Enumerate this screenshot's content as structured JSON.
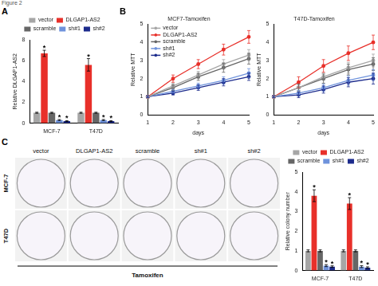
{
  "figure_label": "Figure 2",
  "chart_data": [
    {
      "panel": "A",
      "type": "bar",
      "y_label": "Relative DLGAP1-AS2",
      "categories": [
        "MCF-7",
        "T47D"
      ],
      "series": [
        {
          "name": "vector",
          "color": "#a6a6a6",
          "values": [
            1,
            1
          ],
          "errors": [
            0.05,
            0.05
          ]
        },
        {
          "name": "DLGAP1-AS2",
          "color": "#e8302a",
          "values": [
            6.7,
            5.6
          ],
          "errors": [
            0.3,
            0.6
          ],
          "marks": [
            "*",
            "*"
          ]
        },
        {
          "name": "scramble",
          "color": "#666666",
          "values": [
            1,
            1
          ],
          "errors": [
            0.05,
            0.05
          ]
        },
        {
          "name": "sh#1",
          "color": "#6f93dc",
          "values": [
            0.3,
            0.3
          ],
          "errors": [
            0.05,
            0.05
          ],
          "marks": [
            "*",
            "*"
          ]
        },
        {
          "name": "sh#2",
          "color": "#1c2b8c",
          "values": [
            0.2,
            0.2
          ],
          "errors": [
            0.04,
            0.04
          ],
          "marks": [
            "*",
            "*"
          ]
        }
      ],
      "ylim": [
        0,
        8
      ],
      "yticks": [
        0,
        2,
        4,
        6,
        8
      ],
      "grid": false,
      "legend": "top"
    },
    {
      "panel": "B",
      "type": "line",
      "title": "MCF7-Tamoxifen",
      "x_label": "days",
      "y_label": "Relative MTT",
      "x": [
        1,
        2,
        3,
        4,
        5
      ],
      "series": [
        {
          "name": "vector",
          "color": "#a6a6a6",
          "values": [
            1,
            1.6,
            2.2,
            2.8,
            3.3
          ],
          "errors": [
            0.05,
            0.15,
            0.2,
            0.25,
            0.3
          ]
        },
        {
          "name": "DLGAP1-AS2",
          "color": "#e8302a",
          "values": [
            1,
            2.0,
            2.8,
            3.6,
            4.3
          ],
          "errors": [
            0.05,
            0.2,
            0.25,
            0.3,
            0.35
          ]
        },
        {
          "name": "scramble",
          "color": "#666666",
          "values": [
            1,
            1.5,
            2.1,
            2.6,
            3.1
          ],
          "errors": [
            0.05,
            0.15,
            0.2,
            0.25,
            0.3
          ]
        },
        {
          "name": "sh#1",
          "color": "#6f93dc",
          "values": [
            1,
            1.3,
            1.6,
            1.9,
            2.3
          ],
          "errors": [
            0.05,
            0.1,
            0.15,
            0.2,
            0.25
          ]
        },
        {
          "name": "sh#2",
          "color": "#1c2b8c",
          "values": [
            1,
            1.2,
            1.5,
            1.8,
            2.1
          ],
          "errors": [
            0.05,
            0.1,
            0.15,
            0.2,
            0.2
          ]
        }
      ],
      "xlim": [
        1,
        5
      ],
      "xticks": [
        1,
        2,
        3,
        4,
        5
      ],
      "ylim": [
        0,
        5
      ],
      "yticks": [
        0,
        1,
        2,
        3,
        4,
        5
      ],
      "grid": false,
      "legend": "upper left",
      "marker": "circle",
      "line_style": "solid"
    },
    {
      "type": "line",
      "title": "T47D-Tamoxifen",
      "x_label": "days",
      "y_label": "Relative MTT",
      "x": [
        1,
        2,
        3,
        4,
        5
      ],
      "series": [
        {
          "name": "vector",
          "color": "#a6a6a6",
          "values": [
            1,
            1.5,
            2.1,
            2.6,
            3.0
          ],
          "errors": [
            0.05,
            0.15,
            0.2,
            0.3,
            0.35
          ]
        },
        {
          "name": "DLGAP1-AS2",
          "color": "#e8302a",
          "values": [
            1,
            1.8,
            2.7,
            3.4,
            4.0
          ],
          "errors": [
            0.05,
            0.3,
            0.35,
            0.4,
            0.4
          ]
        },
        {
          "name": "scramble",
          "color": "#666666",
          "values": [
            1,
            1.5,
            2.0,
            2.5,
            2.8
          ],
          "errors": [
            0.05,
            0.2,
            0.25,
            0.3,
            0.35
          ]
        },
        {
          "name": "sh#1",
          "color": "#6f93dc",
          "values": [
            1,
            1.2,
            1.5,
            1.9,
            2.2
          ],
          "errors": [
            0.05,
            0.15,
            0.2,
            0.25,
            0.3
          ]
        },
        {
          "name": "sh#2",
          "color": "#1c2b8c",
          "values": [
            1,
            1.1,
            1.4,
            1.8,
            2.0
          ],
          "errors": [
            0.05,
            0.15,
            0.2,
            0.25,
            0.3
          ]
        }
      ],
      "xlim": [
        1,
        5
      ],
      "xticks": [
        1,
        2,
        3,
        4,
        5
      ],
      "ylim": [
        0,
        5
      ],
      "yticks": [
        0,
        1,
        2,
        3,
        4,
        5
      ],
      "grid": false,
      "marker": "circle",
      "line_style": "solid"
    },
    {
      "type": "bar",
      "y_label": "Relative colony number",
      "categories": [
        "MCF-7",
        "T47D"
      ],
      "series": [
        {
          "name": "vector",
          "color": "#a6a6a6",
          "values": [
            1,
            1
          ],
          "errors": [
            0.05,
            0.05
          ]
        },
        {
          "name": "DLGAP1-AS2",
          "color": "#e8302a",
          "values": [
            3.8,
            3.4
          ],
          "errors": [
            0.3,
            0.3
          ],
          "marks": [
            "*",
            "*"
          ]
        },
        {
          "name": "scramble",
          "color": "#666666",
          "values": [
            1,
            1
          ],
          "errors": [
            0.05,
            0.05
          ]
        },
        {
          "name": "sh#1",
          "color": "#6f93dc",
          "values": [
            0.25,
            0.2
          ],
          "errors": [
            0.05,
            0.05
          ],
          "marks": [
            "*",
            "*"
          ]
        },
        {
          "name": "sh#2",
          "color": "#1c2b8c",
          "values": [
            0.2,
            0.15
          ],
          "errors": [
            0.04,
            0.04
          ],
          "marks": [
            "*",
            "*"
          ]
        }
      ],
      "ylim": [
        0,
        5
      ],
      "yticks": [
        0,
        1,
        2,
        3,
        4,
        5
      ],
      "grid": false,
      "legend": "top"
    }
  ],
  "colony_image": {
    "panel": "C",
    "columns": [
      "vector",
      "DLGAP1-AS2",
      "scramble",
      "sh#1",
      "sh#2"
    ],
    "rows": [
      "MCF-7",
      "T47D"
    ],
    "treatment": "Tamoxifen"
  }
}
